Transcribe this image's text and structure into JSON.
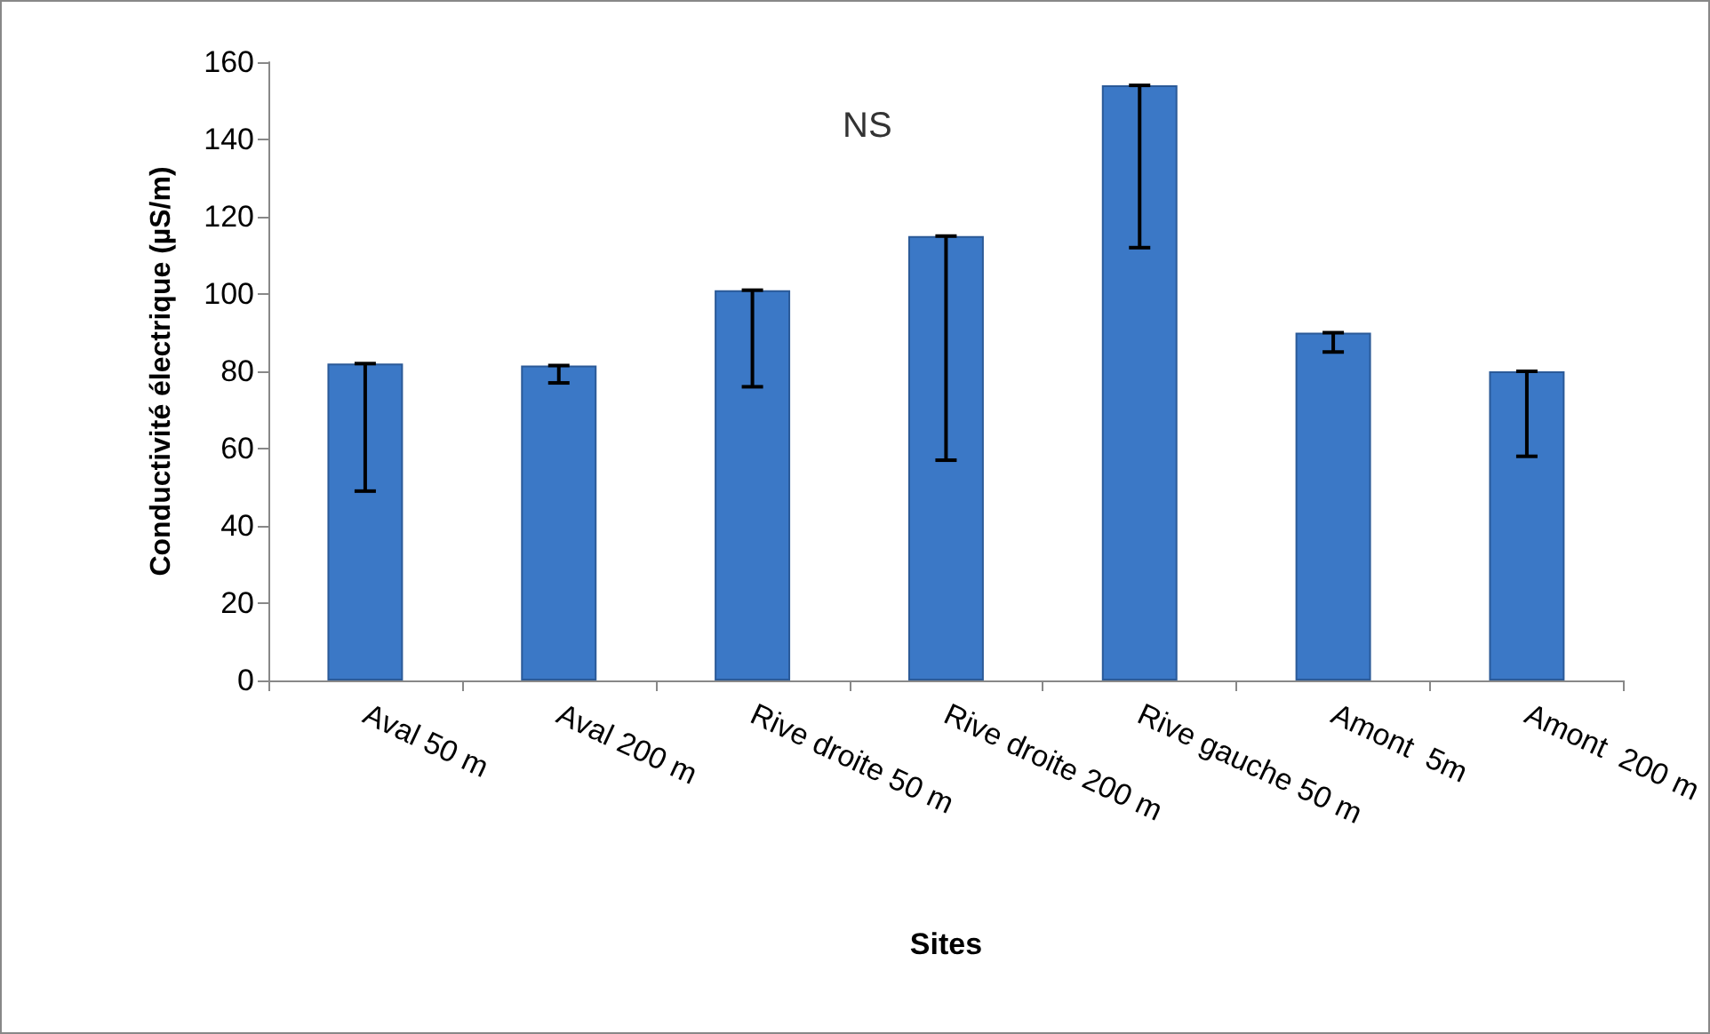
{
  "chart_data": {
    "type": "bar",
    "xlabel": "Sites",
    "ylabel": "Conductivité électrique (µS/m)",
    "categories": [
      "Aval 50 m",
      "Aval 200 m",
      "Rive droite 50 m",
      "Rive droite 200 m",
      "Rive gauche 50 m",
      "Amont  5m",
      "Amont  200 m"
    ],
    "values": [
      82,
      81.5,
      101,
      115,
      154,
      90,
      80
    ],
    "errors": [
      [
        49,
        82
      ],
      [
        77,
        81.5
      ],
      [
        76,
        101
      ],
      [
        57,
        115
      ],
      [
        112,
        154
      ],
      [
        85,
        90
      ],
      [
        58,
        80
      ]
    ],
    "color": "#3b78c6",
    "ylim": [
      0,
      160
    ],
    "yticks": [
      0,
      20,
      40,
      60,
      80,
      100,
      120,
      140,
      160
    ],
    "grid": false,
    "annotations": [
      "NS"
    ]
  }
}
